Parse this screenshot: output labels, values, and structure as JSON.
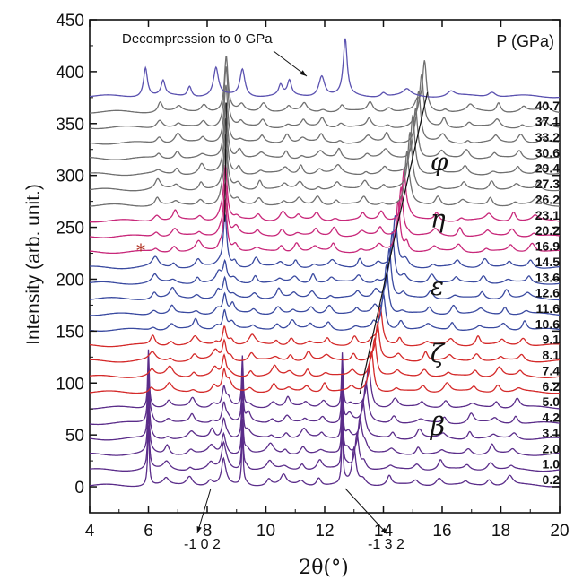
{
  "chart_data": {
    "type": "line",
    "xlabel": "2θ(°)",
    "ylabel": "Intensity (arb. unit.)",
    "xlim": [
      4,
      20
    ],
    "ylim": [
      -25,
      450
    ],
    "x_ticks": [
      4,
      6,
      8,
      10,
      12,
      14,
      16,
      18,
      20
    ],
    "y_ticks": [
      0,
      50,
      100,
      150,
      200,
      250,
      300,
      350,
      400,
      450
    ],
    "legend_header": "P (GPa)",
    "pressures": [
      "0.2",
      "1.0",
      "2.0",
      "3.1",
      "4.2",
      "5.0",
      "6.2",
      "7.4",
      "8.1",
      "9.1",
      "10.6",
      "11.6",
      "12.6",
      "13.6",
      "14.5",
      "16.9",
      "20.2",
      "23.1",
      "26.2",
      "27.3",
      "29.4",
      "30.6",
      "33.2",
      "37.1",
      "40.7"
    ],
    "series": [
      {
        "pressure": "0.2",
        "offset": 0,
        "phase": "β",
        "color": "#5b2d8a"
      },
      {
        "pressure": "1.0",
        "offset": 15,
        "phase": "β",
        "color": "#5b2d8a"
      },
      {
        "pressure": "2.0",
        "offset": 30,
        "phase": "β",
        "color": "#5b2d8a"
      },
      {
        "pressure": "3.1",
        "offset": 45,
        "phase": "β",
        "color": "#5b2d8a"
      },
      {
        "pressure": "4.2",
        "offset": 60,
        "phase": "β",
        "color": "#5b2d8a"
      },
      {
        "pressure": "5.0",
        "offset": 75,
        "phase": "β",
        "color": "#5b2d8a"
      },
      {
        "pressure": "6.2",
        "offset": 90,
        "phase": "ζ",
        "color": "#d42a2a"
      },
      {
        "pressure": "7.4",
        "offset": 105,
        "phase": "ζ",
        "color": "#d42a2a"
      },
      {
        "pressure": "8.1",
        "offset": 120,
        "phase": "ζ",
        "color": "#d42a2a"
      },
      {
        "pressure": "9.1",
        "offset": 135,
        "phase": "ζ",
        "color": "#d42a2a"
      },
      {
        "pressure": "10.6",
        "offset": 150,
        "phase": "ε",
        "color": "#3a4aa0"
      },
      {
        "pressure": "11.6",
        "offset": 165,
        "phase": "ε",
        "color": "#3a4aa0"
      },
      {
        "pressure": "12.6",
        "offset": 180,
        "phase": "ε",
        "color": "#3a4aa0"
      },
      {
        "pressure": "13.6",
        "offset": 195,
        "phase": "ε",
        "color": "#3a4aa0"
      },
      {
        "pressure": "14.5",
        "offset": 210,
        "phase": "ε",
        "color": "#3a4aa0"
      },
      {
        "pressure": "16.9",
        "offset": 225,
        "phase": "η",
        "color": "#c8287a"
      },
      {
        "pressure": "20.2",
        "offset": 240,
        "phase": "η",
        "color": "#c8287a"
      },
      {
        "pressure": "23.1",
        "offset": 255,
        "phase": "η",
        "color": "#c8287a"
      },
      {
        "pressure": "26.2",
        "offset": 270,
        "phase": "φ",
        "color": "#707070"
      },
      {
        "pressure": "27.3",
        "offset": 285,
        "phase": "φ",
        "color": "#707070"
      },
      {
        "pressure": "29.4",
        "offset": 300,
        "phase": "φ",
        "color": "#707070"
      },
      {
        "pressure": "30.6",
        "offset": 315,
        "phase": "φ",
        "color": "#707070"
      },
      {
        "pressure": "33.2",
        "offset": 330,
        "phase": "φ",
        "color": "#707070"
      },
      {
        "pressure": "37.1",
        "offset": 345,
        "phase": "φ",
        "color": "#707070"
      },
      {
        "pressure": "40.7",
        "offset": 360,
        "phase": "φ",
        "color": "#707070"
      },
      {
        "pressure": "0",
        "offset": 375,
        "phase": "decompressed",
        "color": "#5b52b0"
      }
    ],
    "phase_labels": [
      {
        "label": "φ",
        "y": 305
      },
      {
        "label": "η",
        "y": 250
      },
      {
        "label": "ε",
        "y": 185
      },
      {
        "label": "ζ",
        "y": 120
      },
      {
        "label": "β",
        "y": 50
      }
    ],
    "annotations": {
      "decompression": "Decompression to 0 GPa",
      "miller_left": "-1 0 2",
      "miller_right": "-1 3 2",
      "asterisk": "*"
    }
  }
}
